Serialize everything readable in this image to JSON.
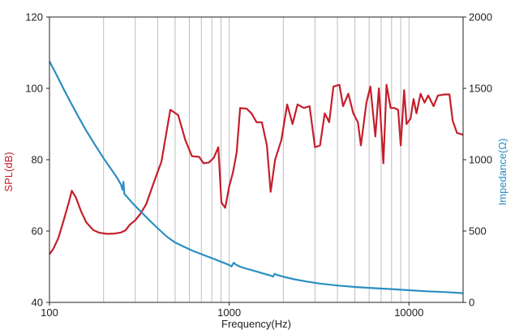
{
  "chart_data": {
    "type": "line",
    "xlabel": "Frequency(Hz)",
    "x_scale": "log",
    "xlim": [
      100,
      20000
    ],
    "x_ticks": [
      {
        "value": 100,
        "label": "100"
      },
      {
        "value": 1000,
        "label": "1000"
      },
      {
        "value": 10000,
        "label": "10000"
      }
    ],
    "grid": "vertical log gridlines",
    "y_left": {
      "label": "SPL(dB)",
      "range": [
        40,
        120
      ],
      "ticks": [
        40,
        60,
        80,
        100,
        120
      ],
      "color": "#c41f2b"
    },
    "y_right": {
      "label": "Impedance(Ω)",
      "range": [
        0,
        2000
      ],
      "ticks": [
        0,
        500,
        1000,
        1500,
        2000
      ],
      "color": "#2a8fc1"
    },
    "series": [
      {
        "key": "spl",
        "axis": "left",
        "color": "#c41f2b",
        "points": [
          [
            100,
            53.5
          ],
          [
            105,
            55
          ],
          [
            112,
            58
          ],
          [
            120,
            63
          ],
          [
            128,
            68
          ],
          [
            133,
            71.3
          ],
          [
            140,
            69.5
          ],
          [
            150,
            65.5
          ],
          [
            160,
            62.5
          ],
          [
            175,
            60.3
          ],
          [
            190,
            59.5
          ],
          [
            210,
            59.2
          ],
          [
            230,
            59.3
          ],
          [
            250,
            59.6
          ],
          [
            265,
            60.2
          ],
          [
            280,
            61.8
          ],
          [
            300,
            63
          ],
          [
            320,
            64.8
          ],
          [
            345,
            67.5
          ],
          [
            380,
            73.5
          ],
          [
            420,
            79.5
          ],
          [
            470,
            94
          ],
          [
            520,
            92.5
          ],
          [
            570,
            85.5
          ],
          [
            620,
            81
          ],
          [
            680,
            80.8
          ],
          [
            720,
            79
          ],
          [
            770,
            79.2
          ],
          [
            820,
            80.5
          ],
          [
            870,
            83.5
          ],
          [
            905,
            68
          ],
          [
            950,
            66.5
          ],
          [
            1000,
            72.5
          ],
          [
            1050,
            76.5
          ],
          [
            1100,
            82
          ],
          [
            1150,
            94.5
          ],
          [
            1250,
            94.3
          ],
          [
            1330,
            93
          ],
          [
            1420,
            90.5
          ],
          [
            1520,
            90.5
          ],
          [
            1620,
            84
          ],
          [
            1700,
            71
          ],
          [
            1800,
            80
          ],
          [
            1950,
            85.5
          ],
          [
            2100,
            95.5
          ],
          [
            2250,
            90
          ],
          [
            2400,
            95.5
          ],
          [
            2600,
            94.5
          ],
          [
            2800,
            95
          ],
          [
            3000,
            83.5
          ],
          [
            3200,
            84
          ],
          [
            3400,
            93
          ],
          [
            3600,
            90.5
          ],
          [
            3800,
            100.5
          ],
          [
            4100,
            101
          ],
          [
            4300,
            95
          ],
          [
            4600,
            98.5
          ],
          [
            4900,
            93
          ],
          [
            5200,
            90.5
          ],
          [
            5400,
            84
          ],
          [
            5800,
            96
          ],
          [
            6100,
            100.5
          ],
          [
            6500,
            86.5
          ],
          [
            6800,
            100
          ],
          [
            7200,
            79
          ],
          [
            7500,
            101
          ],
          [
            7900,
            94.5
          ],
          [
            8300,
            94.5
          ],
          [
            8700,
            94
          ],
          [
            9000,
            84
          ],
          [
            9400,
            99.5
          ],
          [
            9700,
            90
          ],
          [
            10200,
            91.5
          ],
          [
            10600,
            97
          ],
          [
            11000,
            93
          ],
          [
            11600,
            98.5
          ],
          [
            12200,
            96
          ],
          [
            12800,
            98
          ],
          [
            13700,
            95
          ],
          [
            14500,
            98
          ],
          [
            15800,
            98.3
          ],
          [
            16800,
            98.3
          ],
          [
            17500,
            91
          ],
          [
            18500,
            87.5
          ],
          [
            20000,
            87
          ]
        ]
      },
      {
        "key": "impedance",
        "axis": "right",
        "color": "#2a8fc1",
        "points": [
          [
            100,
            1690
          ],
          [
            110,
            1590
          ],
          [
            120,
            1495
          ],
          [
            130,
            1410
          ],
          [
            145,
            1300
          ],
          [
            160,
            1205
          ],
          [
            180,
            1100
          ],
          [
            200,
            1010
          ],
          [
            220,
            935
          ],
          [
            240,
            865
          ],
          [
            250,
            825
          ],
          [
            255,
            790
          ],
          [
            258,
            845
          ],
          [
            261,
            760
          ],
          [
            270,
            740
          ],
          [
            290,
            695
          ],
          [
            320,
            640
          ],
          [
            360,
            575
          ],
          [
            400,
            520
          ],
          [
            450,
            460
          ],
          [
            500,
            420
          ],
          [
            560,
            390
          ],
          [
            630,
            360
          ],
          [
            710,
            335
          ],
          [
            800,
            310
          ],
          [
            900,
            285
          ],
          [
            1000,
            262
          ],
          [
            1030,
            252
          ],
          [
            1060,
            278
          ],
          [
            1090,
            265
          ],
          [
            1150,
            250
          ],
          [
            1250,
            236
          ],
          [
            1400,
            218
          ],
          [
            1550,
            202
          ],
          [
            1700,
            188
          ],
          [
            1750,
            180
          ],
          [
            1790,
            200
          ],
          [
            1850,
            192
          ],
          [
            2000,
            180
          ],
          [
            2300,
            162
          ],
          [
            2700,
            146
          ],
          [
            3200,
            132
          ],
          [
            4000,
            118
          ],
          [
            5000,
            108
          ],
          [
            6300,
            100
          ],
          [
            8000,
            93
          ],
          [
            10000,
            85
          ],
          [
            12500,
            78
          ],
          [
            16000,
            72
          ],
          [
            20000,
            65
          ]
        ]
      }
    ]
  }
}
